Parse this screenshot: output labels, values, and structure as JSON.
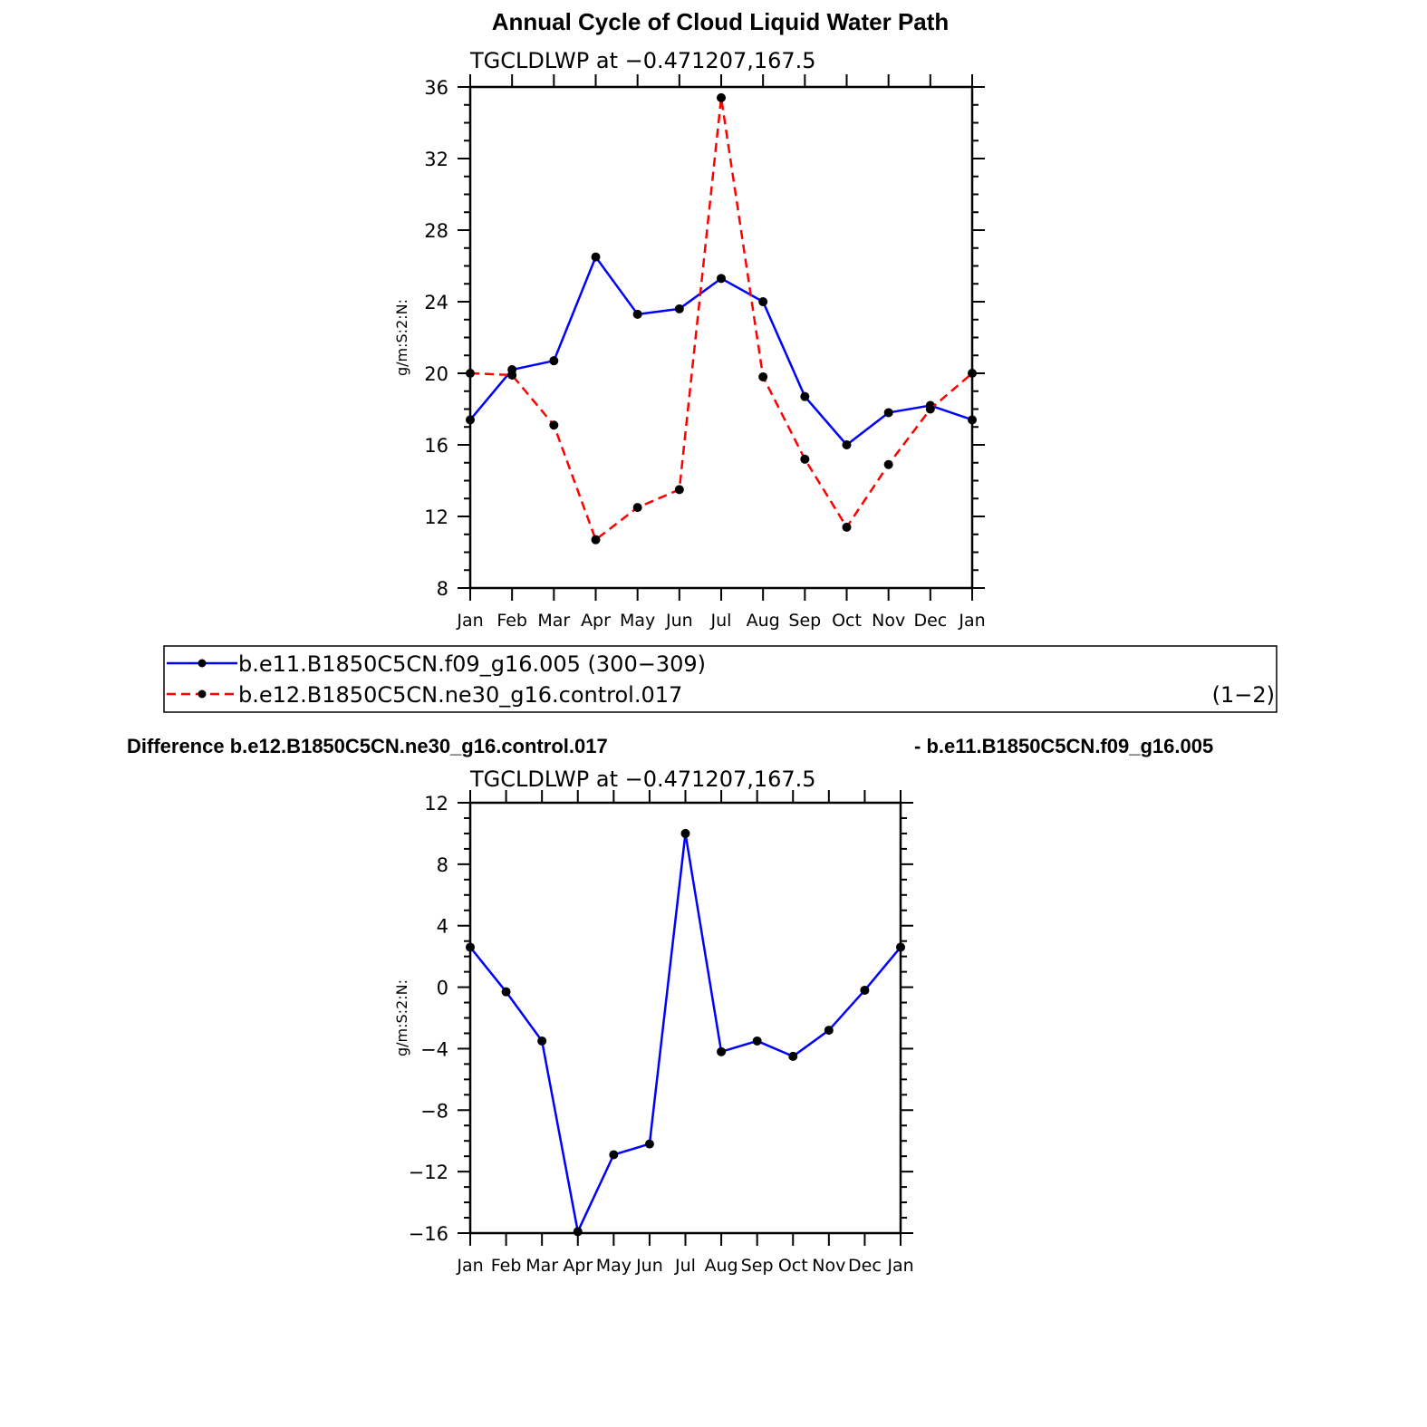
{
  "chart_data": [
    {
      "type": "line",
      "title": "Annual Cycle of Cloud Liquid Water Path",
      "subtitle": "TGCLDLWP at −0.471207,167.5",
      "ylabel": "g/m:S:2:N:",
      "xlabel": "",
      "categories": [
        "Jan",
        "Feb",
        "Mar",
        "Apr",
        "May",
        "Jun",
        "Jul",
        "Aug",
        "Sep",
        "Oct",
        "Nov",
        "Dec",
        "Jan"
      ],
      "ylim": [
        8,
        36
      ],
      "yticks": [
        8,
        12,
        16,
        20,
        24,
        28,
        32,
        36
      ],
      "ytick_labels": [
        "8",
        "12",
        "16",
        "20",
        "24",
        "28",
        "32",
        "36"
      ],
      "grid": false,
      "series": [
        {
          "name": "b.e11.B1850C5CN.f09_g16.005 (300−309)",
          "color": "#0000ff",
          "dash": "solid",
          "marker": "circle",
          "values": [
            17.4,
            20.2,
            20.7,
            26.5,
            23.3,
            23.6,
            25.3,
            24.0,
            18.7,
            16.0,
            17.8,
            18.2,
            17.4
          ]
        },
        {
          "name": "b.e12.B1850C5CN.ne30_g16.control.017",
          "color": "#ff0000",
          "dash": "dashed",
          "marker": "circle",
          "values": [
            20.0,
            19.9,
            17.1,
            10.7,
            12.5,
            13.5,
            35.4,
            19.8,
            15.2,
            11.4,
            14.9,
            18.0,
            20.0
          ]
        }
      ],
      "legend": {
        "placement": "below",
        "entries": [
          "b.e11.B1850C5CN.f09_g16.005 (300−309)",
          "b.e12.B1850C5CN.ne30_g16.control.017"
        ],
        "suffix": "(1−2)"
      }
    },
    {
      "type": "line",
      "title_left": "Difference b.e12.B1850C5CN.ne30_g16.control.017",
      "title_right": "- b.e11.B1850C5CN.f09_g16.005",
      "subtitle": "TGCLDLWP at −0.471207,167.5",
      "ylabel": "g/m:S:2:N:",
      "xlabel": "",
      "categories": [
        "Jan",
        "Feb",
        "Mar",
        "Apr",
        "May",
        "Jun",
        "Jul",
        "Aug",
        "Sep",
        "Oct",
        "Nov",
        "Dec",
        "Jan"
      ],
      "ylim": [
        -16,
        12
      ],
      "yticks": [
        -16,
        -12,
        -8,
        -4,
        0,
        4,
        8,
        12
      ],
      "ytick_labels": [
        "−16",
        "−12",
        "−8",
        "−4",
        "0",
        "4",
        "8",
        "12"
      ],
      "grid": false,
      "series": [
        {
          "color": "#0000ff",
          "dash": "solid",
          "marker": "circle",
          "values": [
            2.6,
            -0.3,
            -3.5,
            -15.9,
            -10.9,
            -10.2,
            10.0,
            -4.2,
            -3.5,
            -4.5,
            -2.8,
            -0.2,
            2.6
          ]
        }
      ]
    }
  ]
}
